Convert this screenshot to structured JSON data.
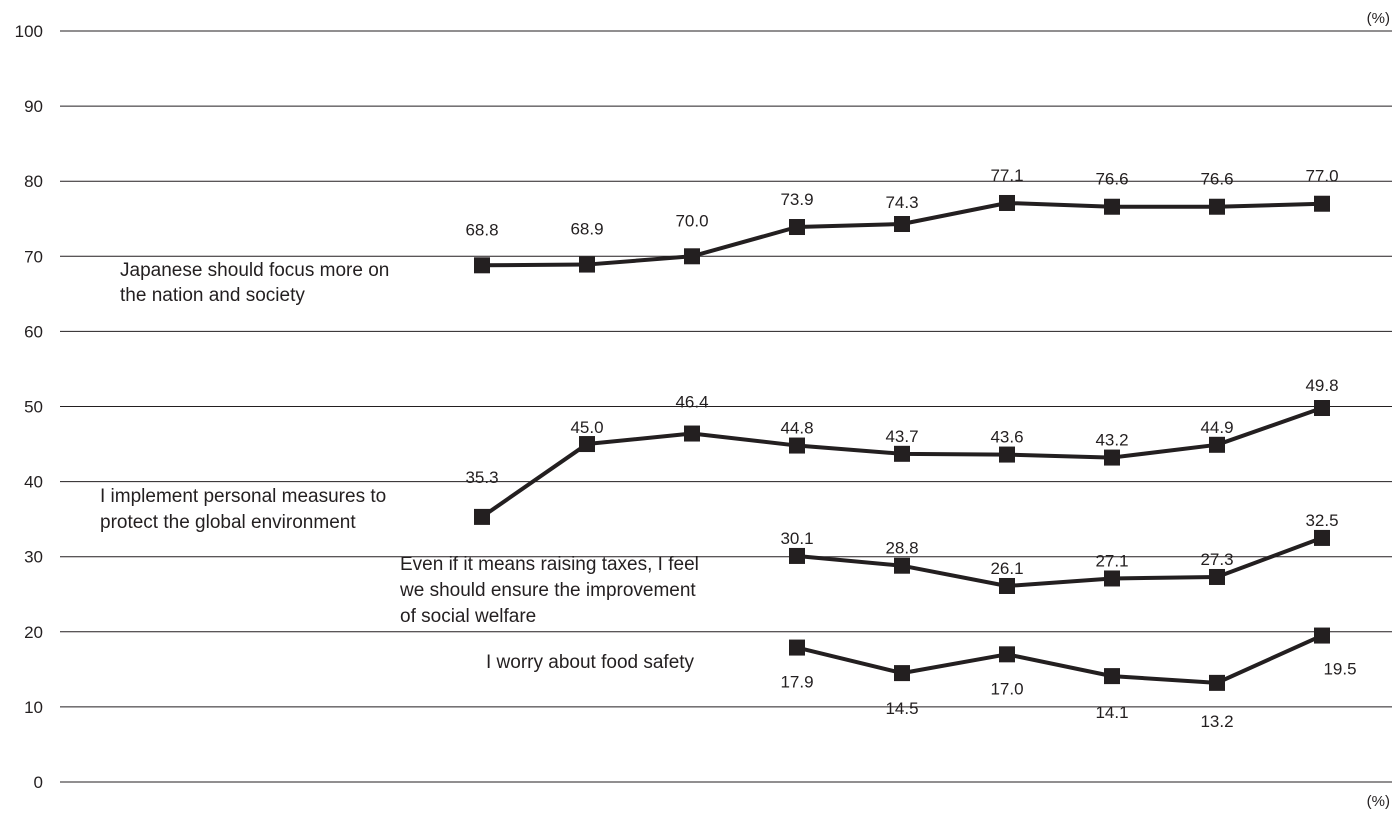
{
  "chart_data": {
    "type": "line",
    "unit_label_top": "(%)",
    "unit_label_bottom": "(%)",
    "ylim": [
      0,
      100
    ],
    "yticks": [
      "0",
      "10",
      "20",
      "30",
      "40",
      "50",
      "60",
      "70",
      "80",
      "90",
      "100"
    ],
    "grid": true,
    "legend": "none",
    "series": [
      {
        "label_lines": [
          "Japanese should focus more on",
          "the nation and society"
        ],
        "start_index": 0,
        "values": [
          68.8,
          68.9,
          70.0,
          73.9,
          74.3,
          77.1,
          76.6,
          76.6,
          77.0
        ],
        "value_labels": [
          "68.8",
          "68.9",
          "70.0",
          "73.9",
          "74.3",
          "77.1",
          "76.6",
          "76.6",
          "77.0"
        ]
      },
      {
        "label_lines": [
          "I implement personal measures to",
          "protect the global environment"
        ],
        "start_index": 0,
        "values": [
          35.3,
          45.0,
          46.4,
          44.8,
          43.7,
          43.6,
          43.2,
          44.9,
          49.8
        ],
        "value_labels": [
          "35.3",
          "45.0",
          "46.4",
          "44.8",
          "43.7",
          "43.6",
          "43.2",
          "44.9",
          "49.8"
        ]
      },
      {
        "label_lines": [
          "Even if it means raising taxes, I feel",
          "we should ensure the improvement",
          "of social welfare"
        ],
        "start_index": 3,
        "values": [
          30.1,
          28.8,
          26.1,
          27.1,
          27.3,
          32.5
        ],
        "value_labels": [
          "30.1",
          "28.8",
          "26.1",
          "27.1",
          "27.3",
          "32.5"
        ]
      },
      {
        "label_lines": [
          "I worry about food safety"
        ],
        "start_index": 3,
        "values": [
          17.9,
          14.5,
          17.0,
          14.1,
          13.2,
          19.5
        ],
        "value_labels": [
          "17.9",
          "14.5",
          "17.0",
          "14.1",
          "13.2",
          "19.5"
        ]
      }
    ]
  }
}
